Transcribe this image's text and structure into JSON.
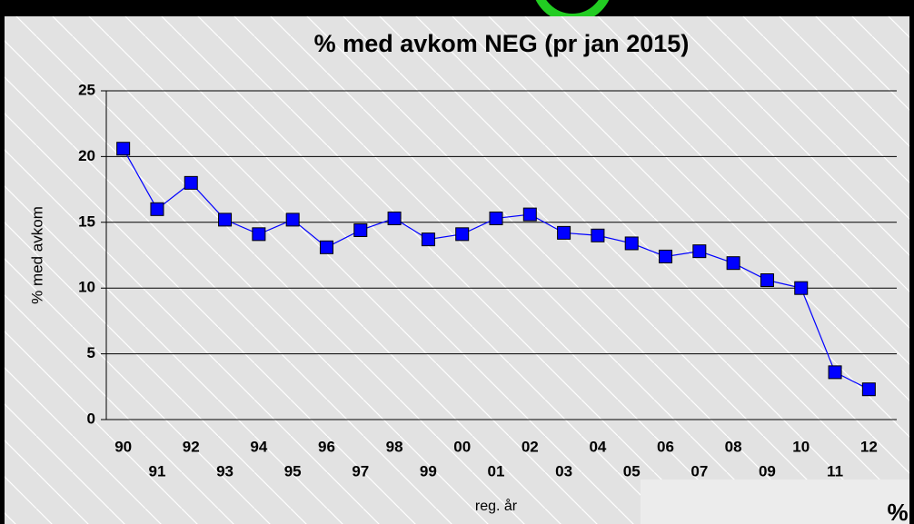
{
  "chart_data": {
    "type": "line",
    "title": "% med avkom NEG (pr jan 2015)",
    "y_label": "% med avkom",
    "x_label": "reg. år",
    "categories": [
      "90",
      "91",
      "92",
      "93",
      "94",
      "95",
      "96",
      "97",
      "98",
      "99",
      "00",
      "01",
      "02",
      "03",
      "04",
      "05",
      "06",
      "07",
      "08",
      "09",
      "10",
      "11",
      "12"
    ],
    "series": [
      {
        "name": "% med avkom NEG",
        "color": "#0000ff",
        "values": [
          20.6,
          16.0,
          18.0,
          15.2,
          14.1,
          15.2,
          13.1,
          14.4,
          15.3,
          13.7,
          14.1,
          15.3,
          15.6,
          14.2,
          14.0,
          13.4,
          12.4,
          12.8,
          11.9,
          10.6,
          10.0,
          3.6,
          2.3
        ]
      }
    ],
    "ylim": [
      0,
      25
    ],
    "yticks": [
      0,
      5,
      10,
      15,
      20,
      25
    ],
    "grid": true
  },
  "corner_text": "%"
}
